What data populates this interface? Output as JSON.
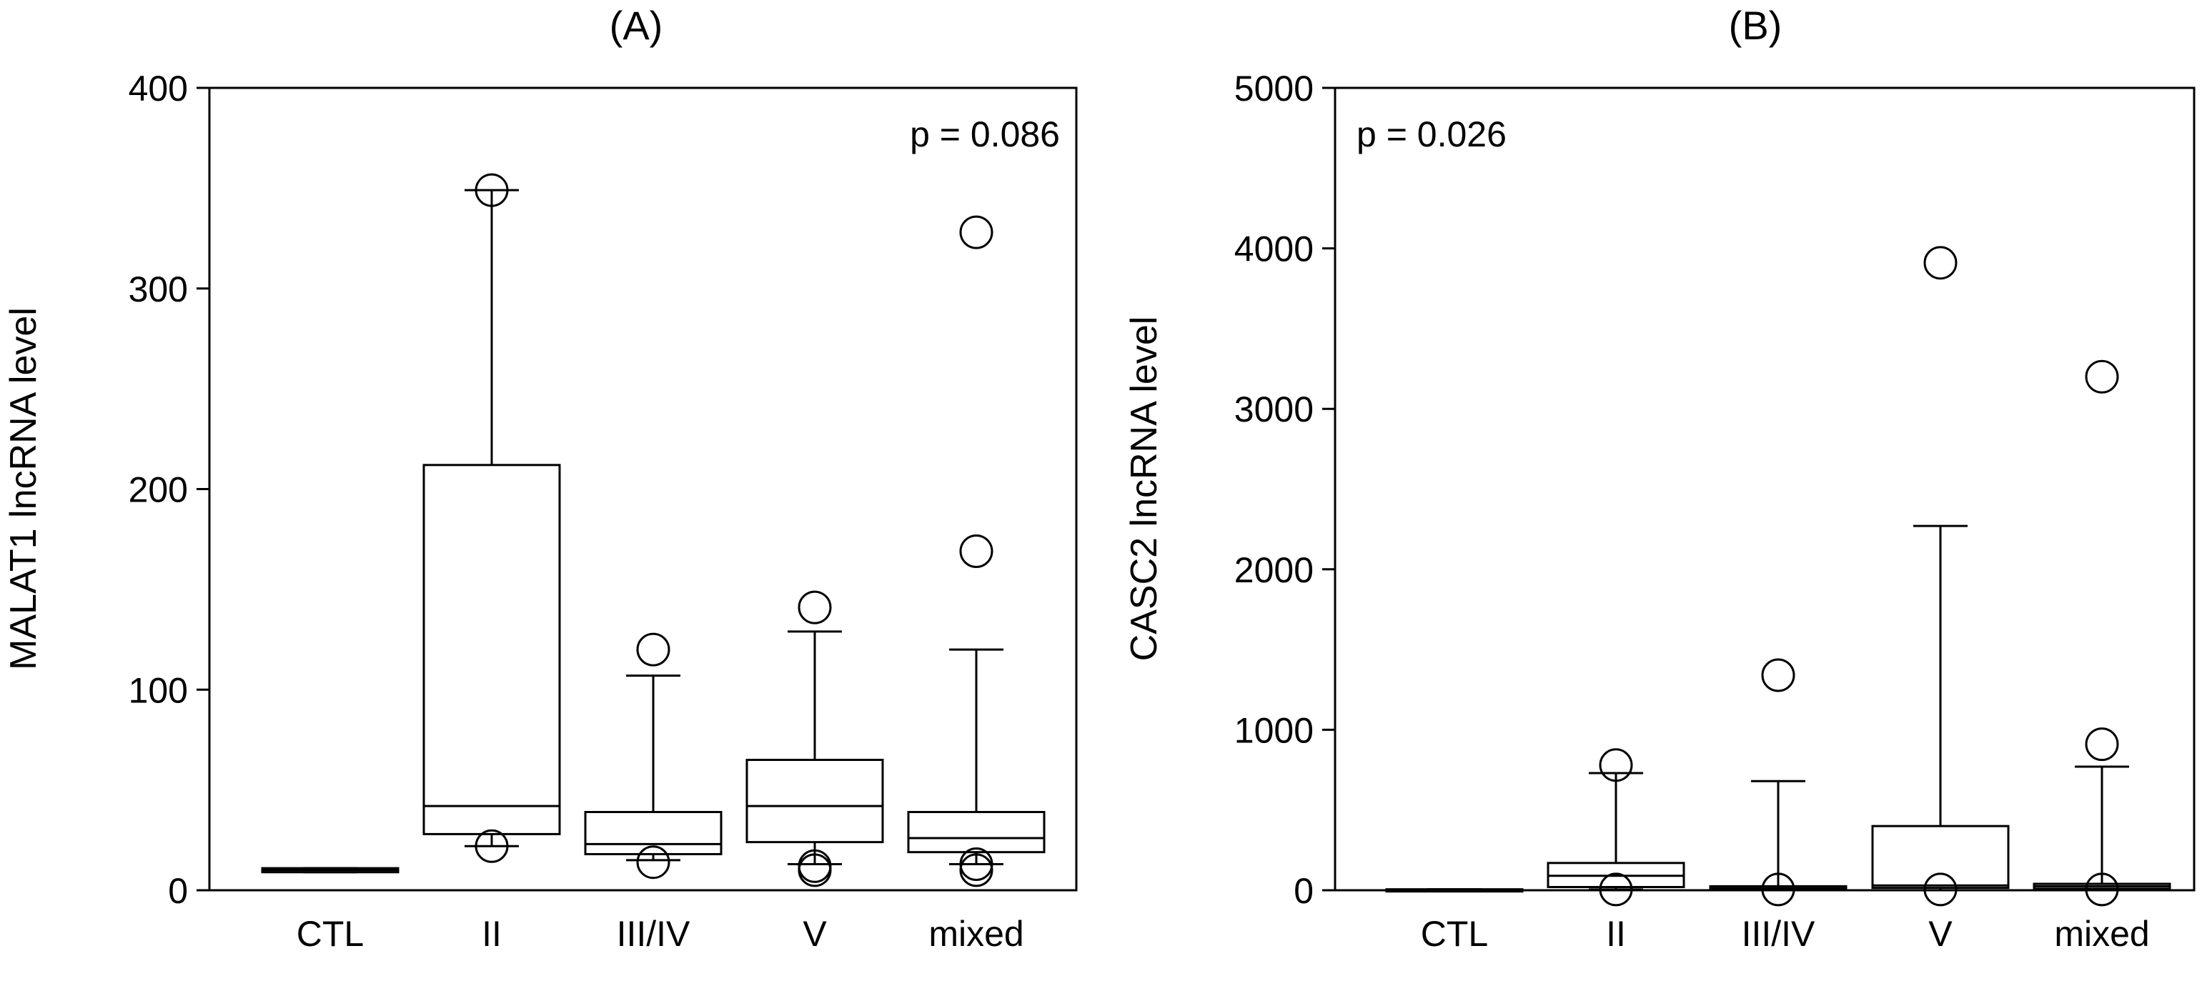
{
  "chart_data": [
    {
      "type": "box",
      "panel_label": "(A)",
      "ylabel": "MALAT1 lncRNA level",
      "xlabel": "",
      "ylim": [
        0,
        400
      ],
      "yticks": [
        0,
        100,
        200,
        300,
        400
      ],
      "categories": [
        "CTL",
        "II",
        "III/IV",
        "V",
        "mixed"
      ],
      "annotation": "p = 0.086",
      "annotation_position": "top-right",
      "boxes": [
        {
          "category": "CTL",
          "whisker_low": 9,
          "q1": 9,
          "median": 10,
          "q3": 11,
          "whisker_high": 11,
          "outliers": []
        },
        {
          "category": "II",
          "whisker_low": 22,
          "q1": 28,
          "median": 42,
          "q3": 212,
          "whisker_high": 349,
          "outliers": [
            349,
            22
          ]
        },
        {
          "category": "III/IV",
          "whisker_low": 15,
          "q1": 18,
          "median": 23,
          "q3": 39,
          "whisker_high": 107,
          "outliers": [
            120,
            14
          ]
        },
        {
          "category": "V",
          "whisker_low": 13,
          "q1": 24,
          "median": 42,
          "q3": 65,
          "whisker_high": 129,
          "outliers": [
            141,
            12,
            10
          ]
        },
        {
          "category": "mixed",
          "whisker_low": 13,
          "q1": 19,
          "median": 26,
          "q3": 39,
          "whisker_high": 120,
          "outliers": [
            328,
            169,
            13,
            10
          ]
        }
      ]
    },
    {
      "type": "box",
      "panel_label": "(B)",
      "ylabel": "CASC2 lncRNA level",
      "xlabel": "",
      "ylim": [
        0,
        5000
      ],
      "yticks": [
        0,
        1000,
        2000,
        3000,
        4000,
        5000
      ],
      "categories": [
        "CTL",
        "II",
        "III/IV",
        "V",
        "mixed"
      ],
      "annotation": "p = 0.026",
      "annotation_position": "top-left",
      "boxes": [
        {
          "category": "CTL",
          "whisker_low": 0,
          "q1": 0,
          "median": 3,
          "q3": 6,
          "whisker_high": 6,
          "outliers": []
        },
        {
          "category": "II",
          "whisker_low": 5,
          "q1": 20,
          "median": 90,
          "q3": 170,
          "whisker_high": 730,
          "outliers": [
            780,
            5
          ]
        },
        {
          "category": "III/IV",
          "whisker_low": 0,
          "q1": 5,
          "median": 12,
          "q3": 25,
          "whisker_high": 680,
          "outliers": [
            1340,
            5
          ]
        },
        {
          "category": "V",
          "whisker_low": 0,
          "q1": 15,
          "median": 30,
          "q3": 400,
          "whisker_high": 2270,
          "outliers": [
            3910,
            5
          ]
        },
        {
          "category": "mixed",
          "whisker_low": 0,
          "q1": 10,
          "median": 25,
          "q3": 40,
          "whisker_high": 770,
          "outliers": [
            3200,
            910,
            5
          ]
        }
      ]
    }
  ]
}
